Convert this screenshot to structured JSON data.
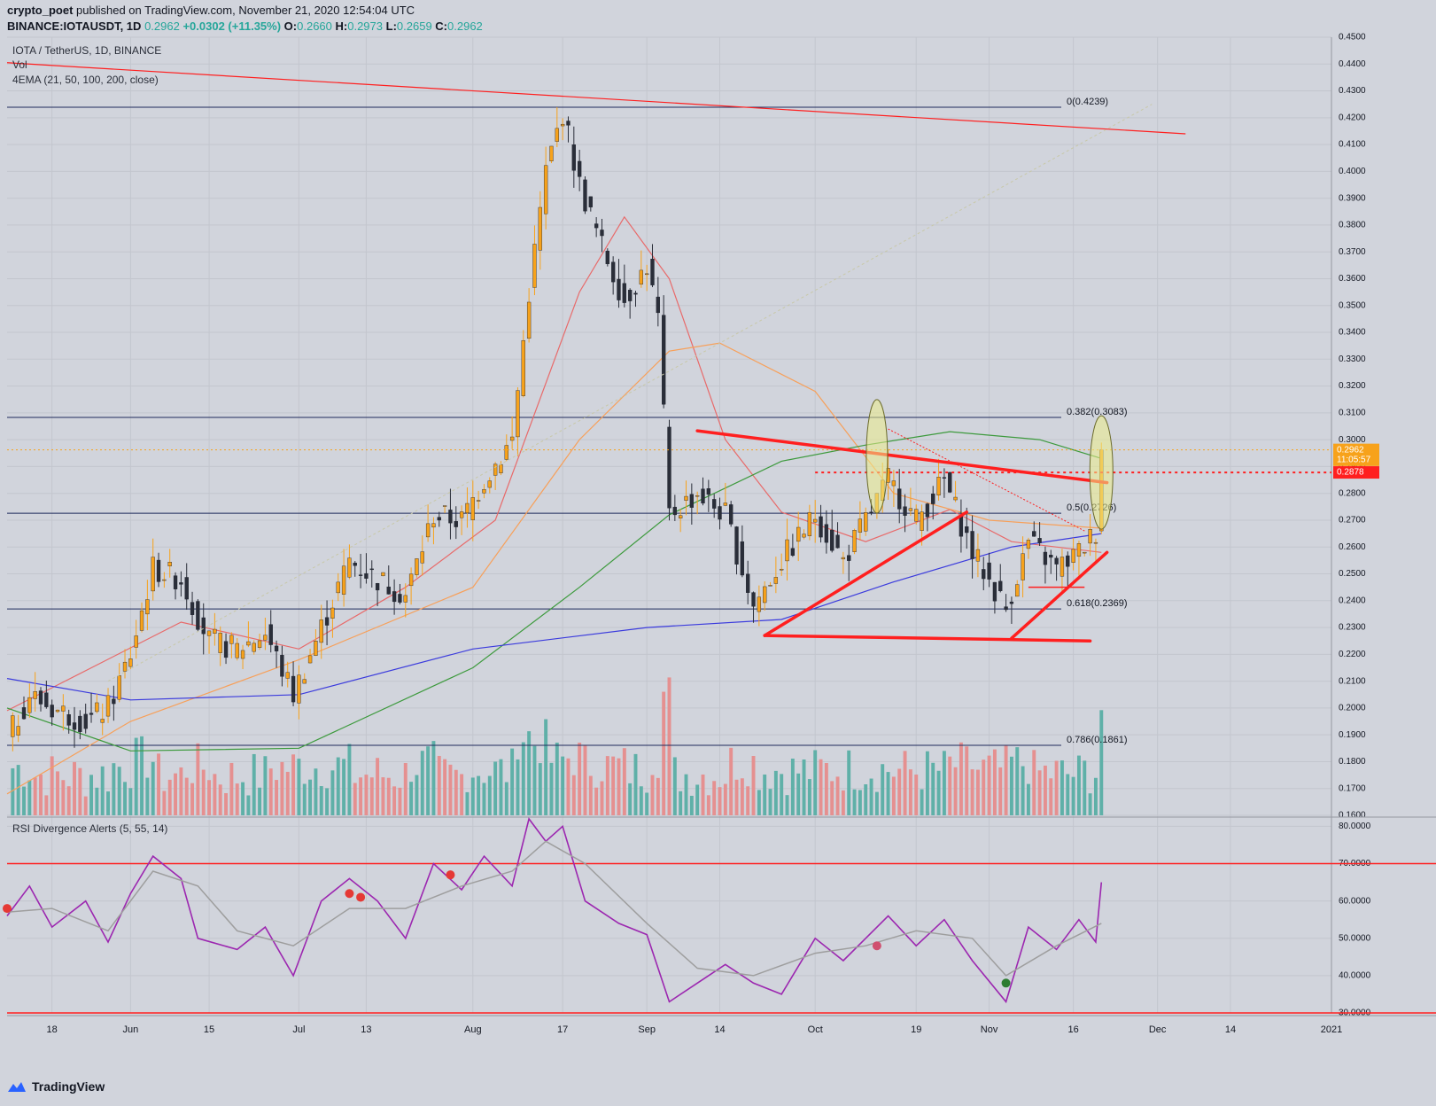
{
  "header": {
    "publisher": "crypto_poet",
    "published_text": " published on TradingView.com, November 21, 2020 12:54:04 UTC",
    "symbol": "BINANCE:IOTAUSDT, 1D",
    "last": "0.2962",
    "change": "+0.0302 (+11.35%)",
    "o_label": "O:",
    "o": "0.2660",
    "h_label": "H:",
    "h": "0.2973",
    "l_label": "L:",
    "l": "0.2659",
    "c_label": "C:",
    "c": "0.2962"
  },
  "legend": {
    "title": "IOTA / TetherUS, 1D, BINANCE",
    "vol": "Vol",
    "ema": "4EMA (21, 50, 100, 200, close)",
    "rsi": "RSI Divergence Alerts (5, 55, 14)"
  },
  "branding": {
    "name": "TradingView"
  },
  "colors": {
    "up": "#f7a21b",
    "down": "#2a2e39",
    "vol_up": "#5fb0a8",
    "vol_down": "#e59090",
    "ema21": "#e86a6a",
    "ema50": "#f7a05a",
    "ema100": "#3d9a3d",
    "ema200": "#3b3bdd",
    "drawing": "#ff1f1f",
    "rsi": "#9c27b0",
    "rsi_signal": "#9e9e9e",
    "fib": "#1f2a5c",
    "ellipse": "#ecec8a"
  },
  "chart_data": [
    {
      "type": "candlestick",
      "title": "IOTA / TetherUS, 1D, BINANCE",
      "ylim": [
        0.16,
        0.45
      ],
      "y_ticks": [
        "0.4500",
        "0.4400",
        "0.4300",
        "0.4200",
        "0.4100",
        "0.4000",
        "0.3900",
        "0.3800",
        "0.3700",
        "0.3600",
        "0.3500",
        "0.3400",
        "0.3300",
        "0.3200",
        "0.3100",
        "0.3000",
        "0.2900",
        "0.2800",
        "0.2700",
        "0.2600",
        "0.2500",
        "0.2400",
        "0.2300",
        "0.2200",
        "0.2100",
        "0.2000",
        "0.1900",
        "0.1800",
        "0.1700",
        "0.1600"
      ],
      "x_ticks": [
        "18",
        "Jun",
        "15",
        "Jul",
        "13",
        "Aug",
        "17",
        "Sep",
        "14",
        "Oct",
        "19",
        "Nov",
        "16",
        "Dec",
        "14",
        "2021"
      ],
      "x_tick_dates": [
        "2020-05-18",
        "2020-06-01",
        "2020-06-15",
        "2020-07-01",
        "2020-07-13",
        "2020-08-01",
        "2020-08-17",
        "2020-09-01",
        "2020-09-14",
        "2020-10-01",
        "2020-10-19",
        "2020-11-01",
        "2020-11-16",
        "2020-12-01",
        "2020-12-14",
        "2021-01-01"
      ],
      "x_range": [
        "2020-05-10",
        "2021-01-01"
      ],
      "closes": [
        {
          "date": "2020-05-10",
          "close": 0.188
        },
        {
          "date": "2020-05-14",
          "close": 0.205
        },
        {
          "date": "2020-05-18",
          "close": 0.2
        },
        {
          "date": "2020-05-24",
          "close": 0.195
        },
        {
          "date": "2020-05-28",
          "close": 0.2
        },
        {
          "date": "2020-06-01",
          "close": 0.22
        },
        {
          "date": "2020-06-05",
          "close": 0.252
        },
        {
          "date": "2020-06-10",
          "close": 0.248
        },
        {
          "date": "2020-06-15",
          "close": 0.225
        },
        {
          "date": "2020-06-20",
          "close": 0.222
        },
        {
          "date": "2020-06-25",
          "close": 0.228
        },
        {
          "date": "2020-06-30",
          "close": 0.205
        },
        {
          "date": "2020-07-05",
          "close": 0.23
        },
        {
          "date": "2020-07-10",
          "close": 0.255
        },
        {
          "date": "2020-07-15",
          "close": 0.248
        },
        {
          "date": "2020-07-20",
          "close": 0.242
        },
        {
          "date": "2020-07-25",
          "close": 0.272
        },
        {
          "date": "2020-07-30",
          "close": 0.27
        },
        {
          "date": "2020-08-03",
          "close": 0.285
        },
        {
          "date": "2020-08-08",
          "close": 0.3
        },
        {
          "date": "2020-08-11",
          "close": 0.355
        },
        {
          "date": "2020-08-14",
          "close": 0.4
        },
        {
          "date": "2020-08-17",
          "close": 0.422
        },
        {
          "date": "2020-08-20",
          "close": 0.395
        },
        {
          "date": "2020-08-24",
          "close": 0.372
        },
        {
          "date": "2020-08-28",
          "close": 0.352
        },
        {
          "date": "2020-09-01",
          "close": 0.365
        },
        {
          "date": "2020-09-03",
          "close": 0.345
        },
        {
          "date": "2020-09-05",
          "close": 0.272
        },
        {
          "date": "2020-09-10",
          "close": 0.28
        },
        {
          "date": "2020-09-15",
          "close": 0.272
        },
        {
          "date": "2020-09-20",
          "close": 0.238
        },
        {
          "date": "2020-09-25",
          "close": 0.255
        },
        {
          "date": "2020-10-01",
          "close": 0.272
        },
        {
          "date": "2020-10-06",
          "close": 0.255
        },
        {
          "date": "2020-10-10",
          "close": 0.27
        },
        {
          "date": "2020-10-14",
          "close": 0.285
        },
        {
          "date": "2020-10-19",
          "close": 0.27
        },
        {
          "date": "2020-10-24",
          "close": 0.285
        },
        {
          "date": "2020-10-29",
          "close": 0.258
        },
        {
          "date": "2020-11-04",
          "close": 0.237
        },
        {
          "date": "2020-11-08",
          "close": 0.262
        },
        {
          "date": "2020-11-13",
          "close": 0.252
        },
        {
          "date": "2020-11-17",
          "close": 0.258
        },
        {
          "date": "2020-11-20",
          "close": 0.266
        },
        {
          "date": "2020-11-21",
          "close": 0.296
        }
      ],
      "ema_lines": [
        {
          "name": "EMA 21",
          "points": [
            {
              "date": "2020-05-10",
              "v": 0.199
            },
            {
              "date": "2020-06-10",
              "v": 0.232
            },
            {
              "date": "2020-07-01",
              "v": 0.222
            },
            {
              "date": "2020-07-20",
              "v": 0.245
            },
            {
              "date": "2020-08-05",
              "v": 0.27
            },
            {
              "date": "2020-08-20",
              "v": 0.355
            },
            {
              "date": "2020-08-28",
              "v": 0.383
            },
            {
              "date": "2020-09-05",
              "v": 0.36
            },
            {
              "date": "2020-09-15",
              "v": 0.3
            },
            {
              "date": "2020-09-25",
              "v": 0.273
            },
            {
              "date": "2020-10-10",
              "v": 0.262
            },
            {
              "date": "2020-10-25",
              "v": 0.274
            },
            {
              "date": "2020-11-05",
              "v": 0.262
            },
            {
              "date": "2020-11-21",
              "v": 0.258
            }
          ]
        },
        {
          "name": "EMA 50",
          "points": [
            {
              "date": "2020-05-10",
              "v": 0.168
            },
            {
              "date": "2020-06-01",
              "v": 0.195
            },
            {
              "date": "2020-07-01",
              "v": 0.218
            },
            {
              "date": "2020-08-01",
              "v": 0.245
            },
            {
              "date": "2020-08-20",
              "v": 0.3
            },
            {
              "date": "2020-09-05",
              "v": 0.333
            },
            {
              "date": "2020-09-14",
              "v": 0.336
            },
            {
              "date": "2020-10-01",
              "v": 0.318
            },
            {
              "date": "2020-10-15",
              "v": 0.28
            },
            {
              "date": "2020-11-01",
              "v": 0.27
            },
            {
              "date": "2020-11-21",
              "v": 0.267
            }
          ]
        },
        {
          "name": "EMA 100",
          "points": [
            {
              "date": "2020-05-10",
              "v": 0.2
            },
            {
              "date": "2020-06-01",
              "v": 0.184
            },
            {
              "date": "2020-07-01",
              "v": 0.185
            },
            {
              "date": "2020-08-01",
              "v": 0.215
            },
            {
              "date": "2020-08-20",
              "v": 0.245
            },
            {
              "date": "2020-09-05",
              "v": 0.272
            },
            {
              "date": "2020-09-25",
              "v": 0.292
            },
            {
              "date": "2020-10-10",
              "v": 0.298
            },
            {
              "date": "2020-10-25",
              "v": 0.303
            },
            {
              "date": "2020-11-10",
              "v": 0.3
            },
            {
              "date": "2020-11-21",
              "v": 0.293
            }
          ]
        },
        {
          "name": "EMA 200",
          "points": [
            {
              "date": "2020-05-10",
              "v": 0.211
            },
            {
              "date": "2020-06-01",
              "v": 0.203
            },
            {
              "date": "2020-07-01",
              "v": 0.205
            },
            {
              "date": "2020-08-01",
              "v": 0.222
            },
            {
              "date": "2020-09-01",
              "v": 0.23
            },
            {
              "date": "2020-09-25",
              "v": 0.233
            },
            {
              "date": "2020-10-15",
              "v": 0.247
            },
            {
              "date": "2020-11-05",
              "v": 0.26
            },
            {
              "date": "2020-11-21",
              "v": 0.265
            }
          ]
        }
      ],
      "fib_levels": [
        {
          "label": "0(0.4239)",
          "value": 0.4239
        },
        {
          "label": "0.382(0.3083)",
          "value": 0.3083
        },
        {
          "label": "0.5(0.2726)",
          "value": 0.2726
        },
        {
          "label": "0.618(0.2369)",
          "value": 0.2369
        },
        {
          "label": "0.786(0.1861)",
          "value": 0.1861
        }
      ],
      "price_labels": [
        {
          "text": "0.2962",
          "value": 0.2962,
          "color": "#f7a21b"
        },
        {
          "text": "11:05:57",
          "value": 0.2925,
          "color": "#f7a21b"
        },
        {
          "text": "0.2878",
          "value": 0.2878,
          "color": "#ff1f1f"
        }
      ]
    },
    {
      "type": "line",
      "title": "RSI Divergence Alerts (5, 55, 14)",
      "ylim": [
        30,
        82
      ],
      "y_ticks": [
        "80.0000",
        "70.0000",
        "60.0000",
        "50.0000",
        "40.0000",
        "30.0000"
      ],
      "overbought": 70,
      "oversold": 30,
      "series": [
        {
          "name": "RSI",
          "points": [
            {
              "date": "2020-05-10",
              "v": 56
            },
            {
              "date": "2020-05-14",
              "v": 64
            },
            {
              "date": "2020-05-18",
              "v": 53
            },
            {
              "date": "2020-05-24",
              "v": 60
            },
            {
              "date": "2020-05-28",
              "v": 49
            },
            {
              "date": "2020-06-01",
              "v": 62
            },
            {
              "date": "2020-06-05",
              "v": 72
            },
            {
              "date": "2020-06-10",
              "v": 66
            },
            {
              "date": "2020-06-13",
              "v": 50
            },
            {
              "date": "2020-06-20",
              "v": 47
            },
            {
              "date": "2020-06-25",
              "v": 53
            },
            {
              "date": "2020-06-30",
              "v": 40
            },
            {
              "date": "2020-07-05",
              "v": 60
            },
            {
              "date": "2020-07-10",
              "v": 66
            },
            {
              "date": "2020-07-15",
              "v": 60
            },
            {
              "date": "2020-07-20",
              "v": 50
            },
            {
              "date": "2020-07-25",
              "v": 70
            },
            {
              "date": "2020-07-30",
              "v": 63
            },
            {
              "date": "2020-08-03",
              "v": 72
            },
            {
              "date": "2020-08-08",
              "v": 64
            },
            {
              "date": "2020-08-11",
              "v": 82
            },
            {
              "date": "2020-08-14",
              "v": 76
            },
            {
              "date": "2020-08-17",
              "v": 80
            },
            {
              "date": "2020-08-21",
              "v": 60
            },
            {
              "date": "2020-08-27",
              "v": 54
            },
            {
              "date": "2020-09-01",
              "v": 51
            },
            {
              "date": "2020-09-05",
              "v": 33
            },
            {
              "date": "2020-09-10",
              "v": 38
            },
            {
              "date": "2020-09-15",
              "v": 43
            },
            {
              "date": "2020-09-20",
              "v": 38
            },
            {
              "date": "2020-09-25",
              "v": 35
            },
            {
              "date": "2020-10-01",
              "v": 50
            },
            {
              "date": "2020-10-06",
              "v": 44
            },
            {
              "date": "2020-10-10",
              "v": 50
            },
            {
              "date": "2020-10-14",
              "v": 56
            },
            {
              "date": "2020-10-19",
              "v": 48
            },
            {
              "date": "2020-10-24",
              "v": 55
            },
            {
              "date": "2020-10-29",
              "v": 44
            },
            {
              "date": "2020-11-04",
              "v": 33
            },
            {
              "date": "2020-11-08",
              "v": 53
            },
            {
              "date": "2020-11-13",
              "v": 47
            },
            {
              "date": "2020-11-17",
              "v": 55
            },
            {
              "date": "2020-11-20",
              "v": 49
            },
            {
              "date": "2020-11-21",
              "v": 65
            }
          ]
        },
        {
          "name": "Signal",
          "points": [
            {
              "date": "2020-05-10",
              "v": 57
            },
            {
              "date": "2020-05-18",
              "v": 58
            },
            {
              "date": "2020-05-28",
              "v": 52
            },
            {
              "date": "2020-06-05",
              "v": 68
            },
            {
              "date": "2020-06-13",
              "v": 64
            },
            {
              "date": "2020-06-20",
              "v": 52
            },
            {
              "date": "2020-06-30",
              "v": 48
            },
            {
              "date": "2020-07-10",
              "v": 58
            },
            {
              "date": "2020-07-20",
              "v": 58
            },
            {
              "date": "2020-07-30",
              "v": 64
            },
            {
              "date": "2020-08-08",
              "v": 68
            },
            {
              "date": "2020-08-14",
              "v": 76
            },
            {
              "date": "2020-08-21",
              "v": 70
            },
            {
              "date": "2020-09-01",
              "v": 54
            },
            {
              "date": "2020-09-10",
              "v": 42
            },
            {
              "date": "2020-09-20",
              "v": 40
            },
            {
              "date": "2020-10-01",
              "v": 46
            },
            {
              "date": "2020-10-10",
              "v": 48
            },
            {
              "date": "2020-10-19",
              "v": 52
            },
            {
              "date": "2020-10-29",
              "v": 50
            },
            {
              "date": "2020-11-04",
              "v": 40
            },
            {
              "date": "2020-11-13",
              "v": 48
            },
            {
              "date": "2020-11-21",
              "v": 54
            }
          ]
        }
      ]
    }
  ]
}
